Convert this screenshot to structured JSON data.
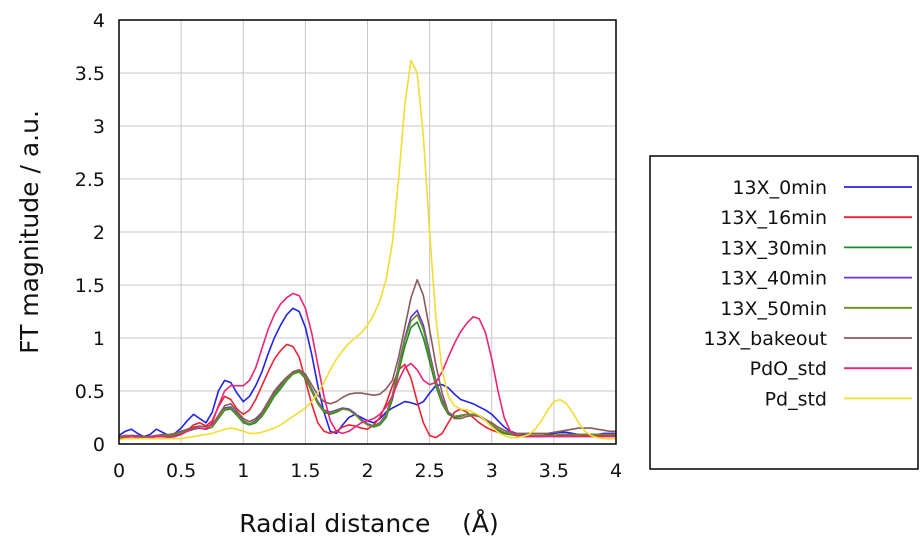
{
  "chart_data": {
    "type": "line",
    "xlabel": "Radial distance    (Å)",
    "ylabel": "FT magnitude / a.u.",
    "xlim": [
      0,
      4
    ],
    "ylim": [
      0,
      4
    ],
    "xticks": [
      "0",
      "0.5",
      "1",
      "1.5",
      "2",
      "2.5",
      "3",
      "3.5",
      "4"
    ],
    "yticks": [
      "0",
      "0.5",
      "1",
      "1.5",
      "2",
      "2.5",
      "3",
      "3.5",
      "4"
    ],
    "grid": true,
    "legend_position": "right",
    "x": [
      0,
      0.05,
      0.1,
      0.15,
      0.2,
      0.25,
      0.3,
      0.35,
      0.4,
      0.45,
      0.5,
      0.55,
      0.6,
      0.65,
      0.7,
      0.75,
      0.8,
      0.85,
      0.9,
      0.95,
      1.0,
      1.05,
      1.1,
      1.15,
      1.2,
      1.25,
      1.3,
      1.35,
      1.4,
      1.45,
      1.5,
      1.55,
      1.6,
      1.65,
      1.7,
      1.75,
      1.8,
      1.85,
      1.9,
      1.95,
      2.0,
      2.05,
      2.1,
      2.15,
      2.2,
      2.25,
      2.3,
      2.35,
      2.4,
      2.45,
      2.5,
      2.55,
      2.6,
      2.65,
      2.7,
      2.75,
      2.8,
      2.85,
      2.9,
      2.95,
      3.0,
      3.05,
      3.1,
      3.15,
      3.2,
      3.25,
      3.3,
      3.35,
      3.4,
      3.45,
      3.5,
      3.55,
      3.6,
      3.65,
      3.7,
      3.75,
      3.8,
      3.85,
      3.9,
      3.95,
      4.0
    ],
    "series": [
      {
        "name": "13X_0min",
        "color": "#2222ee",
        "values": [
          0.08,
          0.12,
          0.14,
          0.1,
          0.07,
          0.09,
          0.14,
          0.11,
          0.08,
          0.1,
          0.15,
          0.22,
          0.28,
          0.24,
          0.2,
          0.3,
          0.5,
          0.6,
          0.58,
          0.48,
          0.4,
          0.45,
          0.55,
          0.68,
          0.85,
          1.0,
          1.12,
          1.22,
          1.28,
          1.25,
          1.1,
          0.85,
          0.55,
          0.3,
          0.12,
          0.1,
          0.18,
          0.25,
          0.28,
          0.25,
          0.22,
          0.2,
          0.24,
          0.3,
          0.34,
          0.37,
          0.4,
          0.39,
          0.37,
          0.4,
          0.48,
          0.55,
          0.56,
          0.53,
          0.47,
          0.42,
          0.4,
          0.38,
          0.35,
          0.32,
          0.28,
          0.22,
          0.16,
          0.12,
          0.1,
          0.09,
          0.08,
          0.08,
          0.08,
          0.09,
          0.1,
          0.11,
          0.11,
          0.1,
          0.09,
          0.08,
          0.08,
          0.09,
          0.1,
          0.1,
          0.1
        ]
      },
      {
        "name": "13X_16min",
        "color": "#ee2233",
        "values": [
          0.06,
          0.07,
          0.08,
          0.07,
          0.06,
          0.07,
          0.08,
          0.08,
          0.07,
          0.08,
          0.1,
          0.13,
          0.18,
          0.2,
          0.17,
          0.22,
          0.35,
          0.45,
          0.42,
          0.33,
          0.28,
          0.32,
          0.42,
          0.55,
          0.68,
          0.8,
          0.88,
          0.94,
          0.92,
          0.82,
          0.6,
          0.38,
          0.2,
          0.12,
          0.1,
          0.12,
          0.16,
          0.18,
          0.17,
          0.15,
          0.14,
          0.18,
          0.25,
          0.38,
          0.55,
          0.7,
          0.75,
          0.62,
          0.4,
          0.2,
          0.08,
          0.06,
          0.1,
          0.2,
          0.3,
          0.33,
          0.3,
          0.25,
          0.2,
          0.16,
          0.13,
          0.11,
          0.1,
          0.09,
          0.08,
          0.07,
          0.07,
          0.07,
          0.07,
          0.08,
          0.08,
          0.08,
          0.08,
          0.08,
          0.08,
          0.08,
          0.08,
          0.08,
          0.08,
          0.08,
          0.08
        ]
      },
      {
        "name": "13X_30min",
        "color": "#1a8a2a",
        "values": [
          0.06,
          0.07,
          0.07,
          0.07,
          0.06,
          0.06,
          0.07,
          0.07,
          0.07,
          0.08,
          0.1,
          0.12,
          0.14,
          0.15,
          0.14,
          0.16,
          0.24,
          0.32,
          0.33,
          0.27,
          0.2,
          0.18,
          0.2,
          0.26,
          0.35,
          0.45,
          0.52,
          0.6,
          0.66,
          0.68,
          0.62,
          0.5,
          0.38,
          0.3,
          0.28,
          0.3,
          0.33,
          0.32,
          0.28,
          0.22,
          0.18,
          0.16,
          0.18,
          0.25,
          0.42,
          0.68,
          0.92,
          1.1,
          1.15,
          1.0,
          0.78,
          0.55,
          0.38,
          0.28,
          0.25,
          0.26,
          0.28,
          0.28,
          0.26,
          0.22,
          0.18,
          0.13,
          0.1,
          0.09,
          0.08,
          0.08,
          0.08,
          0.08,
          0.08,
          0.08,
          0.08,
          0.09,
          0.09,
          0.09,
          0.09,
          0.09,
          0.09,
          0.09,
          0.09,
          0.09,
          0.09
        ]
      },
      {
        "name": "13X_40min",
        "color": "#6633dd",
        "values": [
          0.06,
          0.07,
          0.07,
          0.07,
          0.06,
          0.06,
          0.07,
          0.08,
          0.08,
          0.09,
          0.11,
          0.13,
          0.15,
          0.15,
          0.14,
          0.16,
          0.25,
          0.34,
          0.35,
          0.29,
          0.22,
          0.19,
          0.22,
          0.28,
          0.38,
          0.48,
          0.55,
          0.62,
          0.68,
          0.7,
          0.64,
          0.52,
          0.4,
          0.32,
          0.3,
          0.32,
          0.34,
          0.33,
          0.29,
          0.23,
          0.19,
          0.17,
          0.2,
          0.28,
          0.46,
          0.74,
          1.0,
          1.2,
          1.26,
          1.12,
          0.86,
          0.6,
          0.42,
          0.3,
          0.26,
          0.27,
          0.28,
          0.28,
          0.27,
          0.23,
          0.18,
          0.14,
          0.11,
          0.1,
          0.09,
          0.08,
          0.08,
          0.08,
          0.08,
          0.08,
          0.08,
          0.09,
          0.09,
          0.09,
          0.09,
          0.09,
          0.09,
          0.09,
          0.09,
          0.09,
          0.09
        ]
      },
      {
        "name": "13X_50min",
        "color": "#6b8e1f",
        "values": [
          0.06,
          0.07,
          0.07,
          0.07,
          0.06,
          0.06,
          0.07,
          0.08,
          0.08,
          0.09,
          0.11,
          0.13,
          0.15,
          0.15,
          0.14,
          0.16,
          0.25,
          0.33,
          0.34,
          0.28,
          0.21,
          0.19,
          0.21,
          0.27,
          0.37,
          0.47,
          0.54,
          0.61,
          0.67,
          0.69,
          0.63,
          0.51,
          0.39,
          0.31,
          0.29,
          0.31,
          0.33,
          0.32,
          0.28,
          0.22,
          0.18,
          0.17,
          0.19,
          0.27,
          0.45,
          0.72,
          0.98,
          1.16,
          1.22,
          1.08,
          0.83,
          0.58,
          0.4,
          0.29,
          0.26,
          0.27,
          0.28,
          0.28,
          0.26,
          0.22,
          0.18,
          0.14,
          0.11,
          0.1,
          0.09,
          0.08,
          0.08,
          0.08,
          0.08,
          0.08,
          0.08,
          0.09,
          0.09,
          0.09,
          0.09,
          0.09,
          0.09,
          0.09,
          0.09,
          0.09,
          0.09
        ]
      },
      {
        "name": "13X_bakeout",
        "color": "#8b5a5a",
        "values": [
          0.07,
          0.08,
          0.08,
          0.08,
          0.07,
          0.07,
          0.08,
          0.09,
          0.09,
          0.1,
          0.12,
          0.14,
          0.16,
          0.17,
          0.16,
          0.18,
          0.27,
          0.36,
          0.38,
          0.31,
          0.24,
          0.21,
          0.24,
          0.3,
          0.4,
          0.5,
          0.57,
          0.63,
          0.68,
          0.7,
          0.66,
          0.56,
          0.46,
          0.4,
          0.38,
          0.4,
          0.44,
          0.47,
          0.48,
          0.48,
          0.47,
          0.46,
          0.47,
          0.52,
          0.6,
          0.82,
          1.1,
          1.38,
          1.55,
          1.4,
          1.08,
          0.75,
          0.48,
          0.3,
          0.24,
          0.24,
          0.26,
          0.27,
          0.26,
          0.23,
          0.2,
          0.16,
          0.13,
          0.11,
          0.1,
          0.1,
          0.1,
          0.1,
          0.1,
          0.1,
          0.11,
          0.12,
          0.13,
          0.14,
          0.15,
          0.15,
          0.15,
          0.14,
          0.13,
          0.12,
          0.12
        ]
      },
      {
        "name": "PdO_std",
        "color": "#ee2277",
        "values": [
          0.05,
          0.06,
          0.07,
          0.06,
          0.05,
          0.06,
          0.07,
          0.07,
          0.06,
          0.07,
          0.09,
          0.12,
          0.15,
          0.15,
          0.14,
          0.2,
          0.36,
          0.5,
          0.55,
          0.55,
          0.55,
          0.6,
          0.72,
          0.9,
          1.08,
          1.22,
          1.32,
          1.38,
          1.42,
          1.4,
          1.28,
          1.05,
          0.75,
          0.45,
          0.22,
          0.12,
          0.1,
          0.12,
          0.16,
          0.2,
          0.22,
          0.24,
          0.28,
          0.35,
          0.45,
          0.6,
          0.72,
          0.76,
          0.7,
          0.6,
          0.56,
          0.58,
          0.68,
          0.82,
          0.95,
          1.06,
          1.14,
          1.2,
          1.18,
          1.05,
          0.8,
          0.5,
          0.25,
          0.12,
          0.08,
          0.07,
          0.07,
          0.07,
          0.07,
          0.07,
          0.07,
          0.07,
          0.07,
          0.07,
          0.07,
          0.07,
          0.07,
          0.07,
          0.07,
          0.07,
          0.07
        ]
      },
      {
        "name": "Pd_std",
        "color": "#f2dd30",
        "values": [
          0.04,
          0.05,
          0.05,
          0.05,
          0.05,
          0.05,
          0.05,
          0.05,
          0.05,
          0.05,
          0.05,
          0.06,
          0.07,
          0.08,
          0.09,
          0.1,
          0.12,
          0.14,
          0.15,
          0.14,
          0.12,
          0.1,
          0.1,
          0.11,
          0.13,
          0.15,
          0.18,
          0.22,
          0.26,
          0.3,
          0.34,
          0.4,
          0.48,
          0.58,
          0.7,
          0.8,
          0.88,
          0.95,
          1.0,
          1.05,
          1.12,
          1.22,
          1.35,
          1.55,
          1.9,
          2.5,
          3.2,
          3.62,
          3.5,
          2.9,
          2.0,
          1.2,
          0.7,
          0.45,
          0.36,
          0.33,
          0.32,
          0.3,
          0.27,
          0.22,
          0.16,
          0.11,
          0.08,
          0.06,
          0.06,
          0.07,
          0.09,
          0.14,
          0.22,
          0.32,
          0.4,
          0.42,
          0.38,
          0.3,
          0.2,
          0.12,
          0.08,
          0.06,
          0.05,
          0.05,
          0.05
        ]
      }
    ]
  }
}
